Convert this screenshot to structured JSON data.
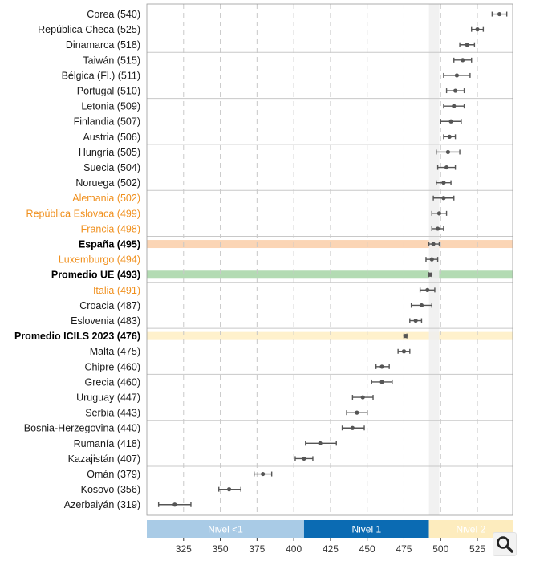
{
  "chart_data": {
    "type": "scatter",
    "x_ticks": [
      325,
      350,
      375,
      400,
      425,
      450,
      475,
      500,
      525
    ],
    "xlim": [
      300,
      549
    ],
    "grid": "vertical dashed",
    "shaded_column": [
      492,
      499
    ],
    "countries": [
      {
        "label": "Corea (540)",
        "value": 540,
        "low": 535,
        "high": 545,
        "style": "normal"
      },
      {
        "label": "República Checa (525)",
        "value": 525,
        "low": 521,
        "high": 529,
        "style": "normal"
      },
      {
        "label": "Dinamarca (518)",
        "value": 518,
        "low": 513,
        "high": 523,
        "style": "normal"
      },
      {
        "label": "Taiwán (515)",
        "value": 515,
        "low": 509,
        "high": 521,
        "style": "normal"
      },
      {
        "label": "Bélgica (Fl.) (511)",
        "value": 511,
        "low": 502,
        "high": 520,
        "style": "normal"
      },
      {
        "label": "Portugal (510)",
        "value": 510,
        "low": 504,
        "high": 516,
        "style": "normal"
      },
      {
        "label": "Letonia (509)",
        "value": 509,
        "low": 502,
        "high": 516,
        "style": "normal"
      },
      {
        "label": "Finlandia (507)",
        "value": 507,
        "low": 500,
        "high": 514,
        "style": "normal"
      },
      {
        "label": "Austria (506)",
        "value": 506,
        "low": 502,
        "high": 510,
        "style": "normal"
      },
      {
        "label": "Hungría (505)",
        "value": 505,
        "low": 497,
        "high": 513,
        "style": "normal"
      },
      {
        "label": "Suecia (504)",
        "value": 504,
        "low": 498,
        "high": 510,
        "style": "normal"
      },
      {
        "label": "Noruega (502)",
        "value": 502,
        "low": 497,
        "high": 507,
        "style": "normal"
      },
      {
        "label": "Alemania (502)",
        "value": 502,
        "low": 495,
        "high": 509,
        "style": "orange"
      },
      {
        "label": "República Eslovaca (499)",
        "value": 499,
        "low": 494,
        "high": 504,
        "style": "orange"
      },
      {
        "label": "Francia (498)",
        "value": 498,
        "low": 494,
        "high": 502,
        "style": "orange"
      },
      {
        "label": "España (495)",
        "value": 495,
        "low": 492,
        "high": 499,
        "style": "bold"
      },
      {
        "label": "Luxemburgo (494)",
        "value": 494,
        "low": 490,
        "high": 498,
        "style": "orange"
      },
      {
        "label": "Promedio UE (493)",
        "value": 493,
        "low": 492,
        "high": 494,
        "style": "bold"
      },
      {
        "label": "Italia (491)",
        "value": 491,
        "low": 486,
        "high": 496,
        "style": "orange"
      },
      {
        "label": "Croacia (487)",
        "value": 487,
        "low": 480,
        "high": 494,
        "style": "normal"
      },
      {
        "label": "Eslovenia (483)",
        "value": 483,
        "low": 479,
        "high": 487,
        "style": "normal"
      },
      {
        "label": "Promedio ICILS 2023 (476)",
        "value": 476,
        "low": 475,
        "high": 477,
        "style": "bold"
      },
      {
        "label": "Malta (475)",
        "value": 475,
        "low": 471,
        "high": 479,
        "style": "normal"
      },
      {
        "label": "Chipre (460)",
        "value": 460,
        "low": 456,
        "high": 465,
        "style": "normal"
      },
      {
        "label": "Grecia (460)",
        "value": 460,
        "low": 453,
        "high": 467,
        "style": "normal"
      },
      {
        "label": "Uruguay (447)",
        "value": 447,
        "low": 440,
        "high": 454,
        "style": "normal"
      },
      {
        "label": "Serbia (443)",
        "value": 443,
        "low": 436,
        "high": 450,
        "style": "normal"
      },
      {
        "label": "Bosnia-Herzegovina (440)",
        "value": 440,
        "low": 433,
        "high": 448,
        "style": "normal"
      },
      {
        "label": "Rumanía (418)",
        "value": 418,
        "low": 408,
        "high": 429,
        "style": "normal"
      },
      {
        "label": "Kazajistán (407)",
        "value": 407,
        "low": 401,
        "high": 413,
        "style": "normal"
      },
      {
        "label": "Omán (379)",
        "value": 379,
        "low": 373,
        "high": 385,
        "style": "normal"
      },
      {
        "label": "Kosovo (356)",
        "value": 356,
        "low": 349,
        "high": 364,
        "style": "normal"
      },
      {
        "label": "Azerbaiyán (319)",
        "value": 319,
        "low": 308,
        "high": 330,
        "style": "normal"
      }
    ],
    "group_separators_after_row": [
      2,
      5,
      8,
      11,
      14,
      17,
      20,
      23,
      26,
      29
    ],
    "highlight_rows": [
      {
        "row": 15,
        "color": "#fbd5b5"
      },
      {
        "row": 17,
        "color": "#b3dbb3"
      },
      {
        "row": 21,
        "color": "#fff1cc"
      }
    ],
    "levels": [
      {
        "label": "Nivel <1",
        "from": 300,
        "to": 407,
        "color": "#a9cbe6",
        "text_color": "#333333"
      },
      {
        "label": "Nivel 1",
        "from": 407,
        "to": 492,
        "color": "#0b6bb3",
        "text_color": "#ffffff"
      },
      {
        "label": "Nivel 2",
        "from": 492,
        "to": 549,
        "color": "#fdecbe",
        "text_color": "#333333"
      }
    ],
    "colors": {
      "label_normal": "#1a1a1a",
      "label_orange": "#f0901e",
      "label_bold": "#000000",
      "point": "#555555",
      "grid": "#c8c8c8",
      "separator": "#c8c8c8",
      "shaded_column": "#efefef"
    }
  },
  "toolbar": {
    "zoom_icon": "magnifier-icon"
  }
}
